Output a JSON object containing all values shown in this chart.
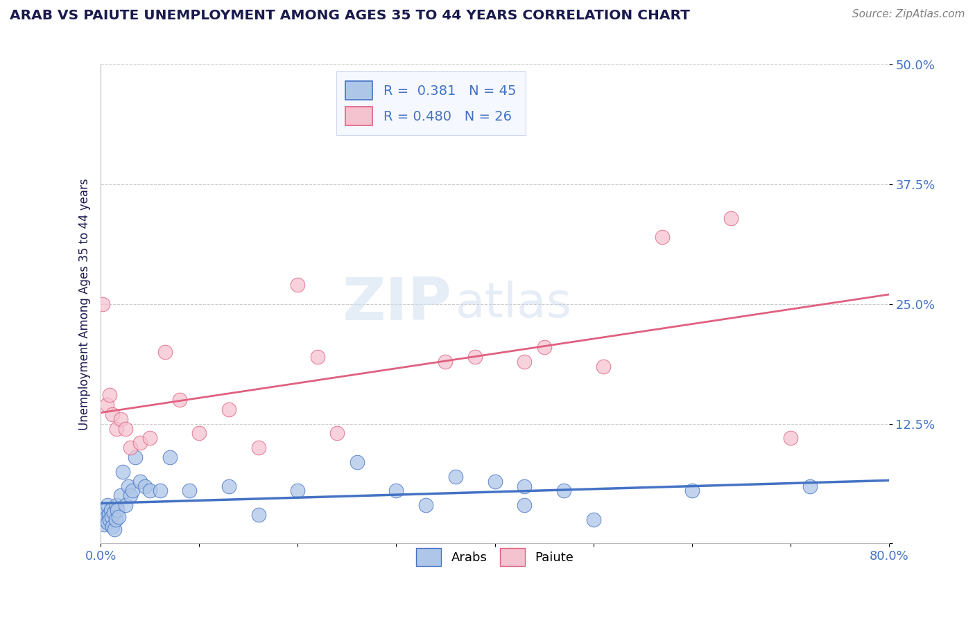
{
  "title": "ARAB VS PAIUTE UNEMPLOYMENT AMONG AGES 35 TO 44 YEARS CORRELATION CHART",
  "source": "Source: ZipAtlas.com",
  "ylabel": "Unemployment Among Ages 35 to 44 years",
  "xlim": [
    0.0,
    0.8
  ],
  "ylim": [
    0.0,
    0.5
  ],
  "xticks": [
    0.0,
    0.1,
    0.2,
    0.3,
    0.4,
    0.5,
    0.6,
    0.7,
    0.8
  ],
  "xticklabels": [
    "0.0%",
    "",
    "",
    "",
    "",
    "",
    "",
    "",
    "80.0%"
  ],
  "yticks": [
    0.0,
    0.125,
    0.25,
    0.375,
    0.5
  ],
  "yticklabels": [
    "",
    "12.5%",
    "25.0%",
    "37.5%",
    "50.0%"
  ],
  "arab_R": "0.381",
  "arab_N": "45",
  "paiute_R": "0.480",
  "paiute_N": "26",
  "arab_color": "#aec6e8",
  "arab_edge_color": "#4472c4",
  "arab_line_color": "#4472c4",
  "paiute_color": "#f5c2d0",
  "paiute_edge_color": "#e06080",
  "paiute_line_color": "#e06080",
  "watermark_zip": "ZIP",
  "watermark_atlas": "atlas",
  "arab_x": [
    0.002,
    0.003,
    0.004,
    0.005,
    0.006,
    0.007,
    0.007,
    0.008,
    0.009,
    0.01,
    0.011,
    0.012,
    0.013,
    0.014,
    0.015,
    0.016,
    0.017,
    0.018,
    0.02,
    0.022,
    0.025,
    0.028,
    0.03,
    0.032,
    0.035,
    0.04,
    0.045,
    0.05,
    0.06,
    0.07,
    0.09,
    0.13,
    0.16,
    0.2,
    0.26,
    0.3,
    0.33,
    0.36,
    0.4,
    0.43,
    0.43,
    0.47,
    0.5,
    0.6,
    0.72
  ],
  "arab_y": [
    0.03,
    0.02,
    0.025,
    0.035,
    0.028,
    0.022,
    0.04,
    0.03,
    0.025,
    0.035,
    0.028,
    0.018,
    0.032,
    0.015,
    0.025,
    0.04,
    0.035,
    0.028,
    0.05,
    0.075,
    0.04,
    0.06,
    0.05,
    0.055,
    0.09,
    0.065,
    0.06,
    0.055,
    0.055,
    0.09,
    0.055,
    0.06,
    0.03,
    0.055,
    0.085,
    0.055,
    0.04,
    0.07,
    0.065,
    0.04,
    0.06,
    0.055,
    0.025,
    0.055,
    0.06
  ],
  "paiute_x": [
    0.002,
    0.006,
    0.009,
    0.012,
    0.016,
    0.02,
    0.025,
    0.03,
    0.04,
    0.05,
    0.065,
    0.08,
    0.1,
    0.13,
    0.16,
    0.2,
    0.22,
    0.24,
    0.35,
    0.38,
    0.43,
    0.45,
    0.51,
    0.57,
    0.64,
    0.7
  ],
  "paiute_y": [
    0.25,
    0.145,
    0.155,
    0.135,
    0.12,
    0.13,
    0.12,
    0.1,
    0.105,
    0.11,
    0.2,
    0.15,
    0.115,
    0.14,
    0.1,
    0.27,
    0.195,
    0.115,
    0.19,
    0.195,
    0.19,
    0.205,
    0.185,
    0.32,
    0.34,
    0.11
  ],
  "background_color": "#ffffff",
  "grid_color": "#cccccc",
  "title_color": "#1a1a4e",
  "tick_color": "#4472c4",
  "legend_box_color": "#f5f8ff",
  "legend_border_color": "#d0d8f0"
}
